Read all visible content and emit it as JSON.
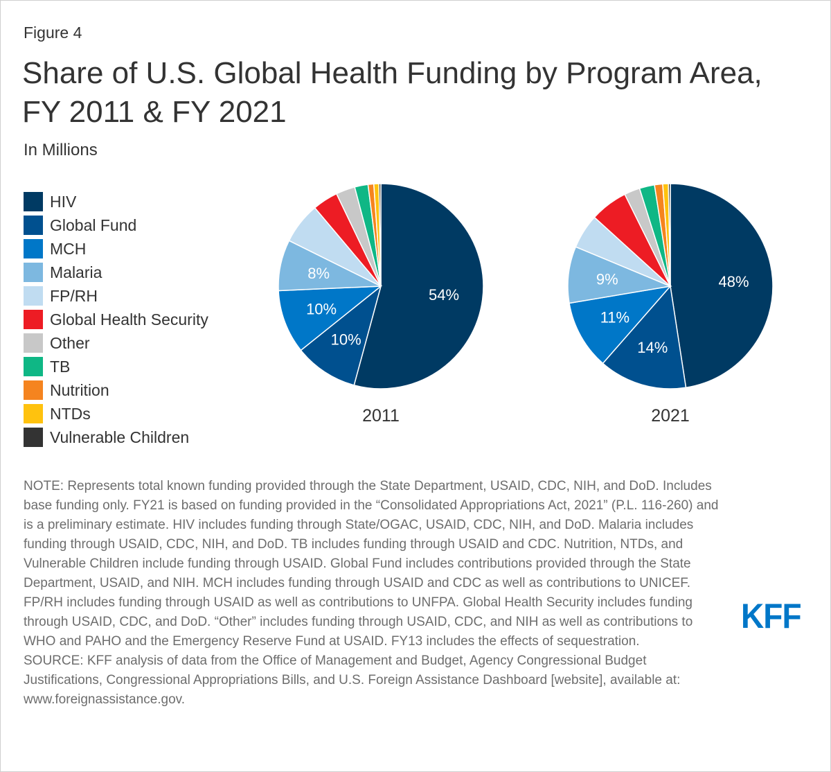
{
  "figure_label": "Figure 4",
  "title": "Share of U.S. Global Health Funding by Program Area, FY 2011 & FY 2021",
  "subtitle": "In Millions",
  "legend": [
    {
      "label": "HIV",
      "color": "#003a63"
    },
    {
      "label": "Global Fund",
      "color": "#00508f"
    },
    {
      "label": "MCH",
      "color": "#0077c8"
    },
    {
      "label": "Malaria",
      "color": "#7db8e0"
    },
    {
      "label": "FP/RH",
      "color": "#c0dcf1"
    },
    {
      "label": "Global Health Security",
      "color": "#ed1c24"
    },
    {
      "label": "Other",
      "color": "#c8c8c8"
    },
    {
      "label": "TB",
      "color": "#0fb785"
    },
    {
      "label": "Nutrition",
      "color": "#f5841f"
    },
    {
      "label": "NTDs",
      "color": "#ffc20e"
    },
    {
      "label": "Vulnerable Children",
      "color": "#333333"
    }
  ],
  "chart_data": [
    {
      "type": "pie",
      "title": "2011",
      "categories": [
        "HIV",
        "Global Fund",
        "MCH",
        "Malaria",
        "FP/RH",
        "Global Health Security",
        "Other",
        "TB",
        "Nutrition",
        "NTDs",
        "Vulnerable Children"
      ],
      "values": [
        54,
        10,
        10,
        8,
        6.5,
        4,
        3,
        2.1,
        0.9,
        0.8,
        0.3
      ],
      "data_labels": [
        "54%",
        "10%",
        "10%",
        "8%",
        "",
        "",
        "",
        "",
        "",
        "",
        ""
      ],
      "unit": "percent"
    },
    {
      "type": "pie",
      "title": "2021",
      "categories": [
        "HIV",
        "Global Fund",
        "MCH",
        "Malaria",
        "FP/RH",
        "Global Health Security",
        "Other",
        "TB",
        "Nutrition",
        "NTDs",
        "Vulnerable Children"
      ],
      "values": [
        48,
        14,
        11,
        9,
        5.5,
        6,
        2.5,
        2.4,
        1.3,
        0.9,
        0.3
      ],
      "data_labels": [
        "48%",
        "14%",
        "11%",
        "9%",
        "",
        "",
        "",
        "",
        "",
        "",
        ""
      ],
      "unit": "percent"
    }
  ],
  "note": "NOTE: Represents total known funding provided through the State Department, USAID, CDC, NIH, and DoD. Includes base funding only. FY21 is based on funding provided in the “Consolidated Appropriations Act, 2021” (P.L. 116-260) and is a preliminary estimate. HIV includes funding through State/OGAC, USAID, CDC, NIH, and DoD. Malaria includes funding through USAID, CDC, NIH, and DoD. TB includes funding through USAID and CDC. Nutrition, NTDs, and Vulnerable Children include funding through USAID. Global Fund includes contributions provided through the State Department, USAID, and NIH. MCH includes funding through USAID and CDC as well as contributions to UNICEF. FP/RH includes funding through USAID as well as contributions to UNFPA. Global Health Security includes funding through USAID, CDC, and DoD. “Other” includes funding through USAID, CDC, and NIH as well as contributions to WHO and PAHO and the Emergency Reserve Fund at USAID. FY13 includes the effects of sequestration.",
  "source": "SOURCE: KFF analysis of data from the Office of Management and Budget, Agency Congressional Budget Justifications, Congressional Appropriations Bills, and U.S. Foreign Assistance Dashboard [website], available at: www.foreignassistance.gov.",
  "logo_text": "KFF"
}
